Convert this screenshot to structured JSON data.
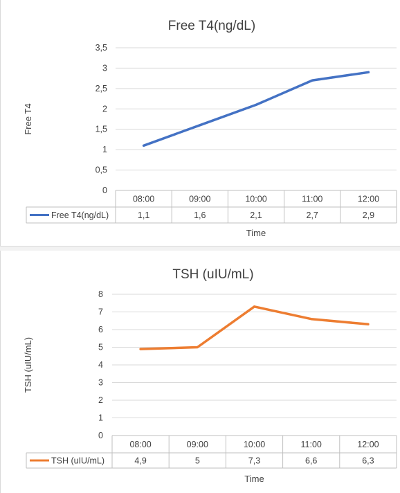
{
  "chart_data": [
    {
      "type": "line",
      "title": "Free T4(ng/dL)",
      "xlabel": "Time",
      "ylabel": "Free T4",
      "categories": [
        "08:00",
        "09:00",
        "10:00",
        "11:00",
        "12:00"
      ],
      "y_ticks": [
        "0",
        "0,5",
        "1",
        "1,5",
        "2",
        "2,5",
        "3",
        "3,5"
      ],
      "ylim": [
        0,
        3.5
      ],
      "grid": true,
      "legend": "data-table",
      "series": [
        {
          "name": "Free T4(ng/dL)",
          "color": "#4472c4",
          "values": [
            1.1,
            1.6,
            2.1,
            2.7,
            2.9
          ],
          "value_labels": [
            "1,1",
            "1,6",
            "2,1",
            "2,7",
            "2,9"
          ]
        }
      ]
    },
    {
      "type": "line",
      "title": "TSH (uIU/mL)",
      "xlabel": "Time",
      "ylabel": "TSH (uIU/mL)",
      "categories": [
        "08:00",
        "09:00",
        "10:00",
        "11:00",
        "12:00"
      ],
      "y_ticks": [
        "0",
        "1",
        "2",
        "3",
        "4",
        "5",
        "6",
        "7",
        "8"
      ],
      "ylim": [
        0,
        8
      ],
      "grid": true,
      "legend": "data-table",
      "series": [
        {
          "name": "TSH (uIU/mL)",
          "color": "#ed7d31",
          "values": [
            4.9,
            5,
            7.3,
            6.6,
            6.3
          ],
          "value_labels": [
            "4,9",
            "5",
            "7,3",
            "6,6",
            "6,3"
          ]
        }
      ]
    }
  ]
}
